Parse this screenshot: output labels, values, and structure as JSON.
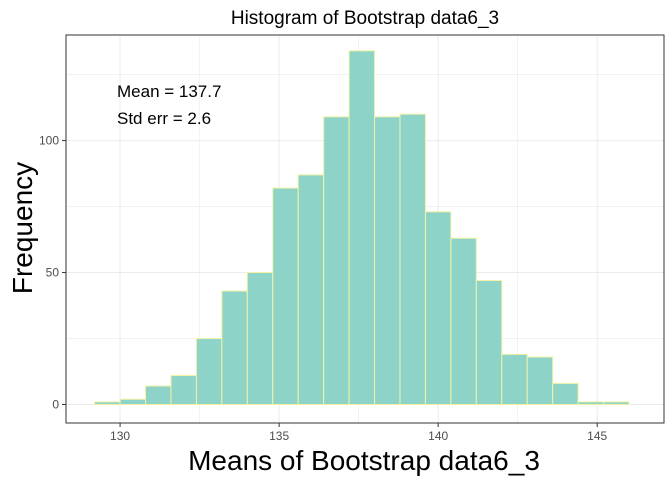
{
  "chart_data": {
    "type": "bar",
    "title": "Histogram of Bootstrap data6_3",
    "xlabel": "Means of Bootstrap data6_3",
    "ylabel": "Frequency",
    "annotations": [
      "Mean = 137.7",
      "Std err = 2.6"
    ],
    "xlim": [
      128.3,
      147.1
    ],
    "ylim": [
      -7,
      140
    ],
    "x_ticks": [
      130,
      135,
      140,
      145
    ],
    "y_ticks": [
      0,
      50,
      100
    ],
    "bin_width": 0.8,
    "bins": [
      {
        "x_start": 129.2,
        "count": 1
      },
      {
        "x_start": 130.0,
        "count": 2
      },
      {
        "x_start": 130.8,
        "count": 7
      },
      {
        "x_start": 131.6,
        "count": 11
      },
      {
        "x_start": 132.4,
        "count": 25
      },
      {
        "x_start": 133.2,
        "count": 43
      },
      {
        "x_start": 134.0,
        "count": 50
      },
      {
        "x_start": 134.8,
        "count": 82
      },
      {
        "x_start": 135.6,
        "count": 87
      },
      {
        "x_start": 136.4,
        "count": 109
      },
      {
        "x_start": 137.2,
        "count": 134
      },
      {
        "x_start": 138.0,
        "count": 109
      },
      {
        "x_start": 138.8,
        "count": 110
      },
      {
        "x_start": 139.6,
        "count": 73
      },
      {
        "x_start": 140.4,
        "count": 63
      },
      {
        "x_start": 141.2,
        "count": 47
      },
      {
        "x_start": 142.0,
        "count": 19
      },
      {
        "x_start": 142.8,
        "count": 18
      },
      {
        "x_start": 143.6,
        "count": 8
      },
      {
        "x_start": 144.4,
        "count": 1
      },
      {
        "x_start": 145.2,
        "count": 1
      }
    ],
    "grid": true,
    "colors": {
      "bar_fill": "#8ED3C7",
      "bar_stroke": "#F2F2A6",
      "grid": "#EBEBEB",
      "panel_border": "#333333",
      "text": "#000000",
      "tick_text": "#4D4D4D"
    }
  }
}
